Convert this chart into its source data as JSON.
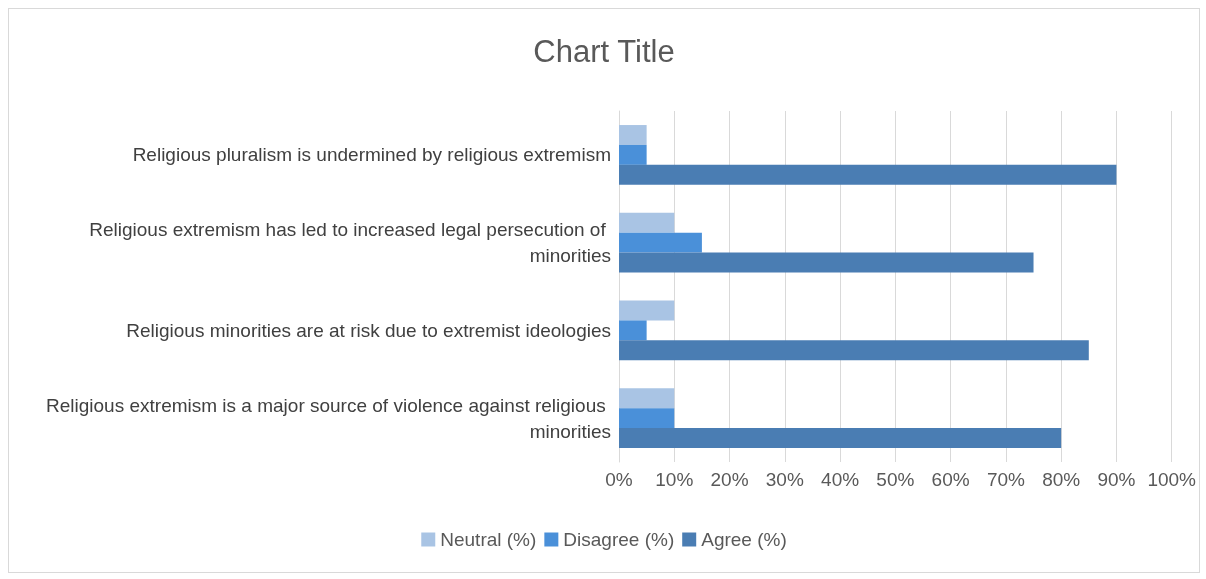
{
  "chart_data": {
    "type": "bar",
    "orientation": "horizontal",
    "title": "Chart Title",
    "categories": [
      "Religious pluralism is undermined by religious extremism",
      "Religious extremism has led to increased legal persecution of minorities",
      "Religious minorities are at risk due to extremist ideologies",
      "Religious extremism is a major source of violence against religious minorities"
    ],
    "series": [
      {
        "name": "Neutral (%)",
        "color": "#a9c4e4",
        "values": [
          5,
          10,
          10,
          10
        ]
      },
      {
        "name": "Disagree (%)",
        "color": "#4a90d9",
        "values": [
          5,
          15,
          5,
          10
        ]
      },
      {
        "name": "Agree (%)",
        "color": "#4a7db3",
        "values": [
          90,
          75,
          85,
          80
        ]
      }
    ],
    "xlim": [
      0,
      100
    ],
    "xticks": [
      {
        "value": 0,
        "label": "0%"
      },
      {
        "value": 10,
        "label": "10%"
      },
      {
        "value": 20,
        "label": "20%"
      },
      {
        "value": 30,
        "label": "30%"
      },
      {
        "value": 40,
        "label": "40%"
      },
      {
        "value": 50,
        "label": "50%"
      },
      {
        "value": 60,
        "label": "60%"
      },
      {
        "value": 70,
        "label": "70%"
      },
      {
        "value": 80,
        "label": "80%"
      },
      {
        "value": 90,
        "label": "90%"
      },
      {
        "value": 100,
        "label": "100%"
      }
    ],
    "grid": "x",
    "legend": "bottom"
  }
}
